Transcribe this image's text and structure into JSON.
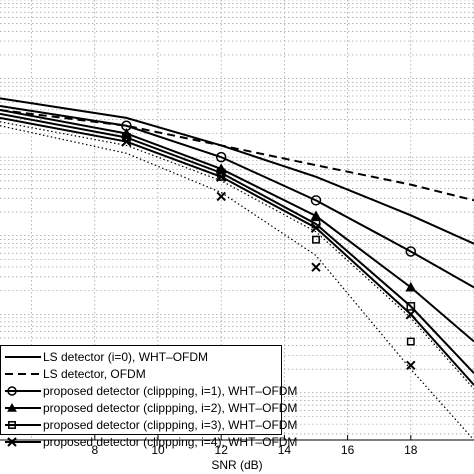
{
  "chart_data": {
    "type": "line",
    "xlabel": "SNR (dB)",
    "ylabel": "",
    "xlim": [
      5,
      20
    ],
    "x_ticks": [
      8,
      10,
      12,
      14,
      16,
      18
    ],
    "ylim_log10": [
      -5.6,
      0
    ],
    "y_scale": "log",
    "grid": true,
    "legend_position": "bottom-left",
    "series": [
      {
        "name": "LS detector (i=0), WHT–OFDM",
        "style": "solid",
        "marker": "none",
        "x": [
          5,
          9,
          12,
          15,
          18,
          20
        ],
        "y": [
          0.056,
          0.0316,
          0.0141,
          0.00562,
          0.00182,
          0.00079
        ]
      },
      {
        "name": "LS detector, OFDM",
        "style": "dashed",
        "marker": "none",
        "x": [
          5,
          9,
          12,
          15,
          18,
          20
        ],
        "y": [
          0.0398,
          0.0251,
          0.0141,
          0.0079,
          0.00447,
          0.00282
        ]
      },
      {
        "name": "proposed detector (clippping, i=1), WHT–OFDM",
        "style": "solid",
        "marker": "circle",
        "x": [
          5,
          9,
          12,
          15,
          18,
          20
        ],
        "y": [
          0.0447,
          0.0251,
          0.01,
          0.00282,
          0.00063,
          0.00022
        ]
      },
      {
        "name": "proposed detector (clippping, i=2), WHT–OFDM",
        "style": "solid",
        "marker": "triangle",
        "x": [
          5,
          9,
          12,
          15,
          18,
          20
        ],
        "y": [
          0.0398,
          0.02,
          0.00708,
          0.00178,
          0.00022,
          4.5e-05
        ]
      },
      {
        "name": "proposed detector (clippping, i=3), WHT–OFDM",
        "style": "solid",
        "marker": "square",
        "x": [
          5,
          9,
          12,
          15,
          18,
          20
        ],
        "y": [
          0.0355,
          0.0178,
          0.00631,
          0.00141,
          0.000126,
          1.78e-05
        ]
      },
      {
        "name": "proposed detector (clippping, i=4), WHT–OFDM",
        "style": "solid",
        "marker": "x",
        "x": [
          5,
          9,
          12,
          15,
          18,
          20
        ],
        "y": [
          0.0316,
          0.0158,
          0.00562,
          0.00126,
          0.0001,
          1.26e-05
        ]
      },
      {
        "name": "",
        "style": "dotted",
        "marker": "none",
        "x": [
          5,
          9,
          12,
          15,
          18,
          20
        ],
        "y": [
          0.0282,
          0.0141,
          0.00501,
          0.00112,
          9e-05,
          1.12e-05
        ]
      },
      {
        "name": "",
        "style": "dotted",
        "marker": "none",
        "x": [
          5,
          9,
          12,
          15,
          18,
          20
        ],
        "y": [
          0.0251,
          0.0112,
          0.00355,
          0.00056,
          2e-05,
          2.5e-06
        ]
      }
    ],
    "dotted_markers": [
      {
        "marker": "square",
        "x": [
          12,
          15,
          18
        ],
        "y": [
          0.00562,
          0.00089,
          4.5e-05
        ]
      },
      {
        "marker": "x",
        "x": [
          9,
          12,
          15,
          18
        ],
        "y": [
          0.0178,
          0.00316,
          0.000398,
          2.24e-05
        ]
      }
    ]
  },
  "legend": [
    {
      "label": "LS detector (i=0), WHT–OFDM",
      "style": "solid",
      "marker": "none"
    },
    {
      "label": "LS detector, OFDM",
      "style": "dashed",
      "marker": "none"
    },
    {
      "label": "proposed detector (clippping, i=1), WHT–OFDM",
      "style": "solid",
      "marker": "circle"
    },
    {
      "label": "proposed detector (clippping, i=2), WHT–OFDM",
      "style": "solid",
      "marker": "triangle"
    },
    {
      "label": "proposed detector (clippping, i=3), WHT–OFDM",
      "style": "solid",
      "marker": "square"
    },
    {
      "label": "proposed detector (clippping, i=4), WHT–OFDM",
      "style": "solid",
      "marker": "x"
    }
  ]
}
